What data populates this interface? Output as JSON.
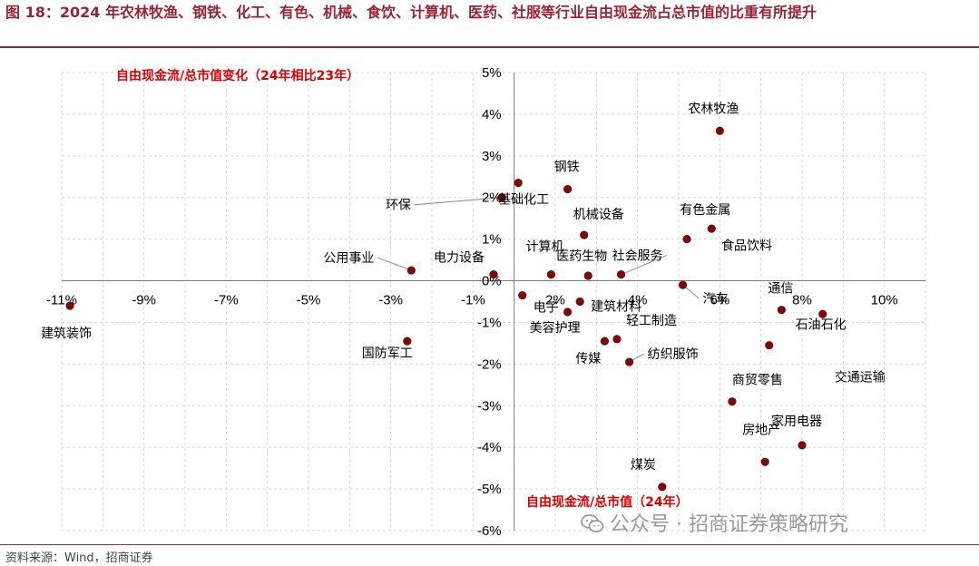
{
  "title": "图 18：2024 年农林牧渔、钢铁、化工、有色、机械、食饮、计算机、医药、社服等行业自由现金流占总市值的比重有所提升",
  "source": "资料来源：Wind，招商证券",
  "watermark": "公众号 · 招商证券策略研究",
  "chart_data": {
    "type": "scatter",
    "ylabel": "自由现金流/总市值变化（24年相比23年）",
    "xlabel": "自由现金流/总市值（24年）",
    "xlim": [
      -11,
      10
    ],
    "ylim": [
      -6,
      5
    ],
    "x_ticks": [
      "-11%",
      "-9%",
      "-7%",
      "-5%",
      "-3%",
      "-1%",
      "2%",
      "4%",
      "6%",
      "8%",
      "10%"
    ],
    "y_ticks": [
      "5%",
      "4%",
      "3%",
      "2%",
      "1%",
      "0%",
      "-1%",
      "-1%",
      "-2%",
      "-3%",
      "-4%",
      "-5%",
      "-6%"
    ],
    "point_color": "#7b0a0a",
    "points": [
      {
        "name": "农林牧渔",
        "x": 5.0,
        "y": 3.6
      },
      {
        "name": "钢铁",
        "x": 1.3,
        "y": 2.2
      },
      {
        "name": "基础化工",
        "x": 0.1,
        "y": 2.35
      },
      {
        "name": "环保",
        "x": -0.3,
        "y": 2.0
      },
      {
        "name": "机械设备",
        "x": 1.7,
        "y": 1.1
      },
      {
        "name": "有色金属",
        "x": 4.8,
        "y": 1.25
      },
      {
        "name": "食品饮料",
        "x": 4.2,
        "y": 1.0
      },
      {
        "name": "计算机",
        "x": 0.9,
        "y": 0.15
      },
      {
        "name": "医药生物",
        "x": 1.8,
        "y": 0.12
      },
      {
        "name": "社会服务",
        "x": 2.6,
        "y": 0.15
      },
      {
        "name": "电力设备",
        "x": -0.5,
        "y": 0.15
      },
      {
        "name": "公用事业",
        "x": -2.5,
        "y": 0.25
      },
      {
        "name": "建筑材料",
        "x": 1.6,
        "y": -0.5
      },
      {
        "name": "汽车",
        "x": 4.1,
        "y": -0.1
      },
      {
        "name": "通信",
        "x": 6.5,
        "y": -0.7
      },
      {
        "name": "电子",
        "x": 0.2,
        "y": -0.35
      },
      {
        "name": "美容护理",
        "x": 1.3,
        "y": -0.75
      },
      {
        "name": "石油石化",
        "x": 7.5,
        "y": -0.8
      },
      {
        "name": "轻工制造",
        "x": 2.5,
        "y": -1.4
      },
      {
        "name": "传媒",
        "x": 2.2,
        "y": -1.45
      },
      {
        "name": "交通运输",
        "x": 6.2,
        "y": -1.55
      },
      {
        "name": "建筑装饰",
        "x": -10.8,
        "y": -0.6
      },
      {
        "name": "国防军工",
        "x": -2.6,
        "y": -1.45
      },
      {
        "name": "纺织服饰",
        "x": 2.8,
        "y": -1.95
      },
      {
        "name": "商贸零售",
        "x": 5.3,
        "y": -2.9
      },
      {
        "name": "家用电器",
        "x": 7.0,
        "y": -3.95
      },
      {
        "name": "房地产",
        "x": 6.1,
        "y": -4.35
      },
      {
        "name": "煤炭",
        "x": 3.6,
        "y": -4.95
      }
    ]
  }
}
